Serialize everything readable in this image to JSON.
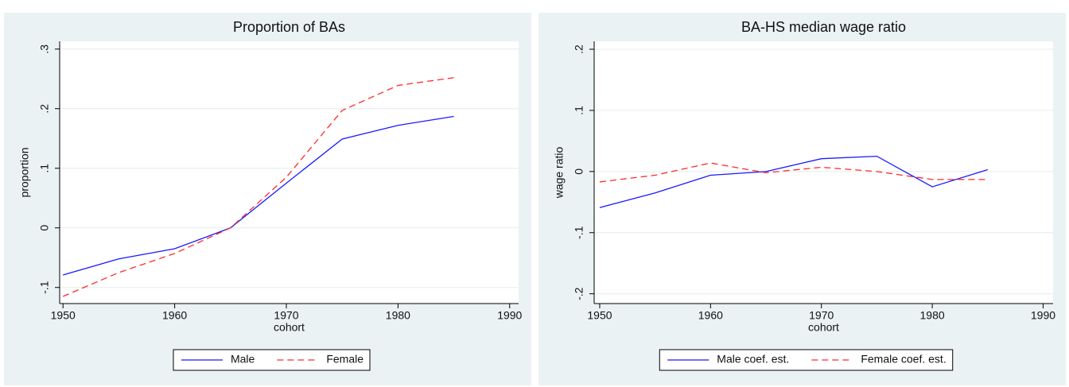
{
  "chart_data": [
    {
      "type": "line",
      "title": "Proportion of BAs",
      "x_label": "cohort",
      "y_label": "proportion",
      "x": [
        1950,
        1955,
        1960,
        1965,
        1970,
        1975,
        1980,
        1985
      ],
      "series": [
        {
          "name": "Male",
          "color": "#1a1aff",
          "dash": "solid",
          "values": [
            -0.079,
            -0.052,
            -0.035,
            0,
            0.075,
            0.149,
            0.172,
            0.187
          ]
        },
        {
          "name": "Female",
          "color": "#ff2a2a",
          "dash": "dashed",
          "values": [
            -0.115,
            -0.075,
            -0.043,
            0,
            0.085,
            0.197,
            0.239,
            0.252
          ]
        }
      ],
      "xlim": [
        1949.7,
        1990.8
      ],
      "xticks": [
        1950,
        1960,
        1970,
        1980,
        1990
      ],
      "ylim": [
        -0.127,
        0.313
      ],
      "yticks": [
        {
          "value": -0.1,
          "label": "-.1"
        },
        0,
        {
          "value": 0.1,
          "label": ".1"
        },
        {
          "value": 0.2,
          "label": ".2"
        },
        {
          "value": 0.3,
          "label": ".3"
        }
      ],
      "grid": true,
      "legend": "bottom"
    },
    {
      "type": "line",
      "title": "BA-HS median wage ratio",
      "x_label": "cohort",
      "y_label": "wage ratio",
      "x": [
        1950,
        1955,
        1960,
        1965,
        1970,
        1975,
        1980,
        1985
      ],
      "series": [
        {
          "name": "Male coef. est.",
          "color": "#1a1aff",
          "dash": "solid",
          "values": [
            -0.059,
            -0.035,
            -0.006,
            0,
            0.021,
            0.025,
            -0.025,
            0.003
          ]
        },
        {
          "name": "Female coef. est.",
          "color": "#ff2a2a",
          "dash": "dashed",
          "values": [
            -0.017,
            -0.006,
            0.014,
            -0.002,
            0.007,
            0,
            -0.013,
            -0.013
          ]
        }
      ],
      "xlim": [
        1949.5,
        1990.9
      ],
      "xticks": [
        1950,
        1960,
        1970,
        1980,
        1990
      ],
      "ylim": [
        -0.216,
        0.213
      ],
      "yticks": [
        {
          "value": -0.2,
          "label": "-.2"
        },
        {
          "value": -0.1,
          "label": "-.1"
        },
        0,
        {
          "value": 0.1,
          "label": ".1"
        },
        {
          "value": 0.2,
          "label": ".2"
        }
      ],
      "grid": true,
      "legend": "bottom"
    }
  ]
}
